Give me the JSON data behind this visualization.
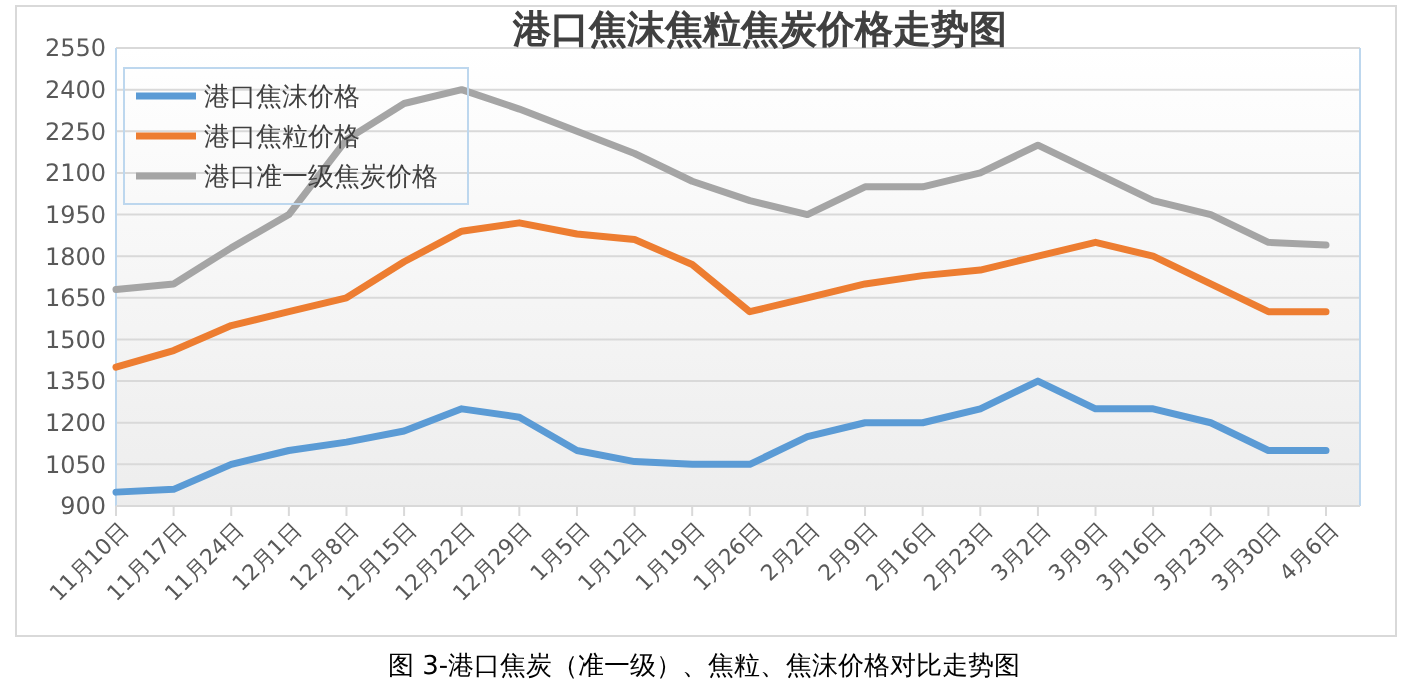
{
  "chart_data": {
    "type": "line",
    "title": "港口焦沫焦粒焦炭价格走势图",
    "annotations": [
      "图 3-港口焦炭（准一级）、焦粒、焦沫价格对比走势图"
    ],
    "categories": [
      "11月10日",
      "11月17日",
      "11月24日",
      "12月1日",
      "12月8日",
      "12月15日",
      "12月22日",
      "12月29日",
      "1月5日",
      "1月12日",
      "1月19日",
      "1月26日",
      "2月2日",
      "2月9日",
      "2月16日",
      "2月23日",
      "3月2日",
      "3月9日",
      "3月16日",
      "3月23日",
      "3月30日",
      "4月6日"
    ],
    "ylim": [
      900,
      2550
    ],
    "yticks": [
      900,
      1050,
      1200,
      1350,
      1500,
      1650,
      1800,
      1950,
      2100,
      2250,
      2400,
      2550
    ],
    "grid": "y",
    "legend": "top left",
    "marker": "none",
    "line_style": "solid",
    "series": [
      {
        "name": "港口焦沫价格",
        "color": "#5b9bd5",
        "values": [
          950,
          960,
          1050,
          1100,
          1130,
          1170,
          1250,
          1220,
          1100,
          1060,
          1050,
          1050,
          1150,
          1200,
          1200,
          1250,
          1350,
          1250,
          1250,
          1200,
          1100,
          1100
        ]
      },
      {
        "name": "港口焦粒价格",
        "color": "#ed7d31",
        "values": [
          1400,
          1460,
          1550,
          1600,
          1650,
          1780,
          1890,
          1920,
          1880,
          1860,
          1770,
          1600,
          1650,
          1700,
          1730,
          1750,
          1800,
          1850,
          1800,
          1700,
          1600,
          1600
        ]
      },
      {
        "name": "港口准一级焦炭价格",
        "color": "#a5a5a5",
        "values": [
          1680,
          1700,
          1830,
          1950,
          2220,
          2350,
          2400,
          2330,
          2250,
          2170,
          2070,
          2000,
          1950,
          2050,
          2050,
          2100,
          2200,
          2100,
          2000,
          1950,
          1850,
          1840
        ]
      }
    ]
  }
}
